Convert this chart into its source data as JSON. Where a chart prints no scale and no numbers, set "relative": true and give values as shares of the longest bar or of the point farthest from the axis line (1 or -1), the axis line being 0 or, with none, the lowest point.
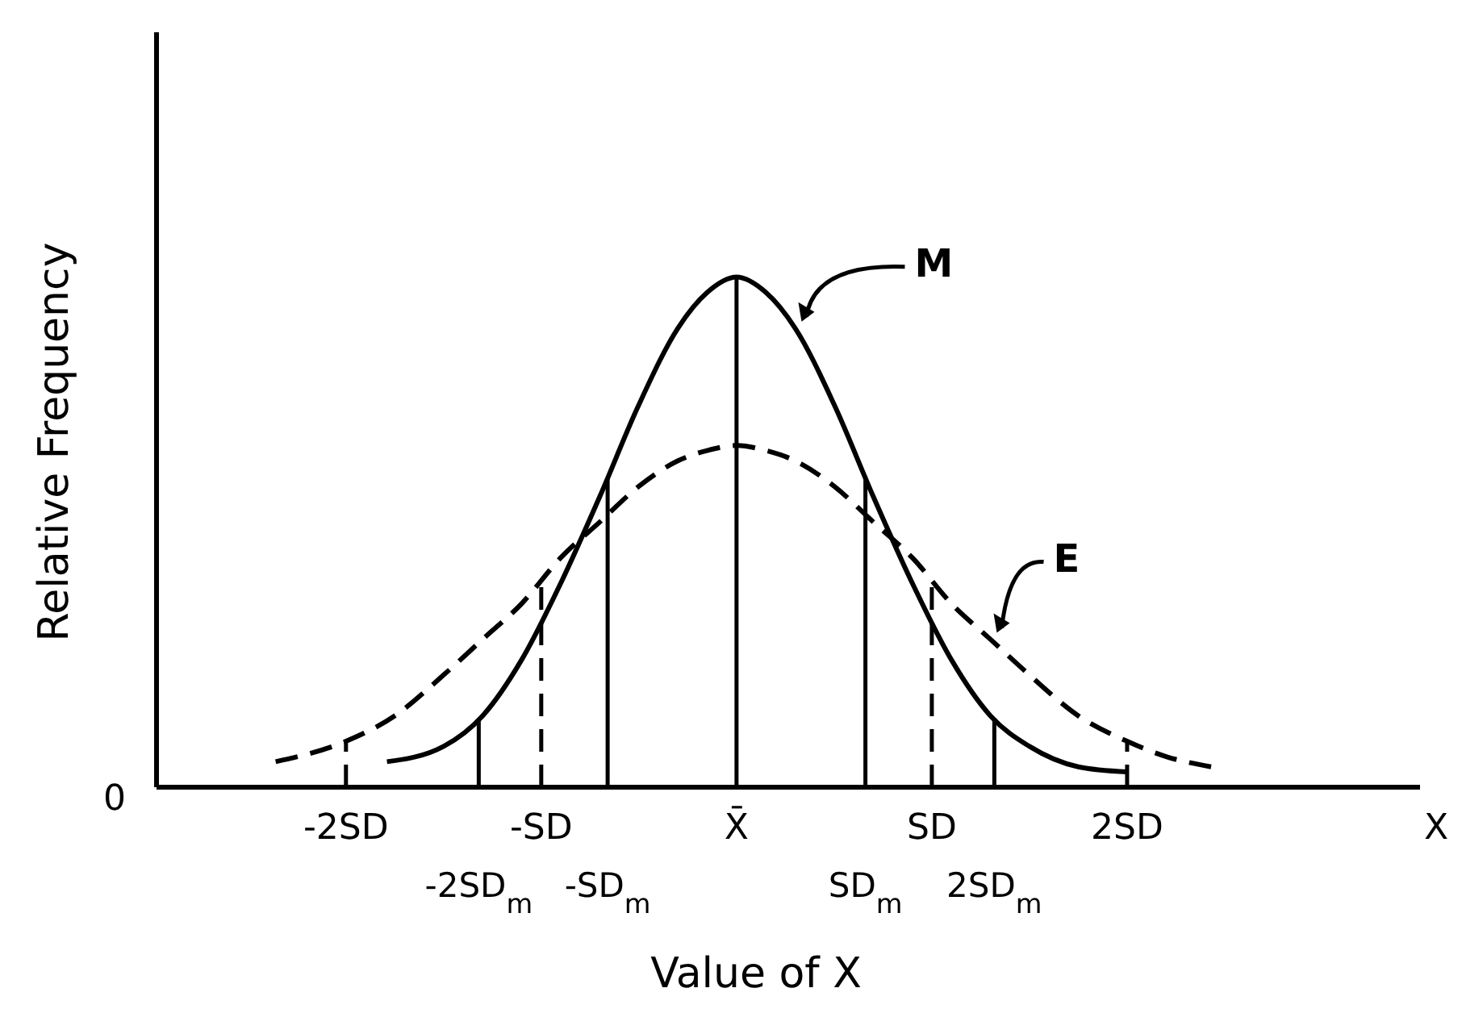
{
  "chart_data": {
    "type": "line",
    "relative": true,
    "xlabel": "Value of X",
    "ylabel": "Relative Frequency",
    "xlim": [
      -2.97,
      3.5
    ],
    "xticks": [
      {
        "value": -2,
        "label": "-2SD"
      },
      {
        "value": -1,
        "label": "-SD"
      },
      {
        "value": 0,
        "label": "X̄"
      },
      {
        "value": 1,
        "label": "SD"
      },
      {
        "value": 2,
        "label": "2SD"
      }
    ],
    "series": [
      {
        "name": "M",
        "color": "#000000",
        "line_style": "solid",
        "x": [
          -1.79,
          -1.5,
          -1.3,
          -1.1,
          -0.9,
          -0.7,
          -0.5,
          -0.3,
          -0.15,
          0,
          0.15,
          0.3,
          0.5,
          0.7,
          0.9,
          1.1,
          1.3,
          1.5,
          1.75,
          2.0
        ],
        "values": [
          0.05,
          0.08,
          0.14,
          0.25,
          0.4,
          0.57,
          0.75,
          0.9,
          0.97,
          1,
          0.97,
          0.9,
          0.75,
          0.57,
          0.4,
          0.25,
          0.14,
          0.08,
          0.04,
          0.03
        ]
      },
      {
        "name": "E",
        "color": "#000000",
        "line_style": "dashed",
        "x": [
          -2.36,
          -2.0,
          -1.75,
          -1.5,
          -1.3,
          -1.1,
          -0.9,
          -0.7,
          -0.5,
          -0.3,
          -0.15,
          0,
          0.15,
          0.3,
          0.5,
          0.7,
          0.9,
          1.1,
          1.3,
          1.5,
          1.75,
          2.0,
          2.2,
          2.43
        ],
        "values": [
          0.05,
          0.09,
          0.14,
          0.22,
          0.29,
          0.36,
          0.45,
          0.52,
          0.59,
          0.64,
          0.66,
          0.67,
          0.66,
          0.64,
          0.59,
          0.52,
          0.45,
          0.36,
          0.29,
          0.22,
          0.14,
          0.09,
          0.06,
          0.04
        ]
      }
    ],
    "ref_lines": [
      {
        "axis": "x",
        "value": -2,
        "line_style": "dashed"
      },
      {
        "axis": "x",
        "value": -1.32,
        "line_style": "solid",
        "label": "-2SD$_{m}$"
      },
      {
        "axis": "x",
        "value": -1,
        "line_style": "dashed"
      },
      {
        "axis": "x",
        "value": -0.66,
        "line_style": "solid",
        "label": "-SD$_{m}$"
      },
      {
        "axis": "x",
        "value": 0,
        "line_style": "solid"
      },
      {
        "axis": "x",
        "value": 0.66,
        "line_style": "solid",
        "label": "SD$_{m}$"
      },
      {
        "axis": "x",
        "value": 1,
        "line_style": "dashed"
      },
      {
        "axis": "x",
        "value": 1.32,
        "line_style": "solid",
        "label": "2SD$_{m}$"
      },
      {
        "axis": "x",
        "value": 2,
        "line_style": "dashed"
      }
    ],
    "annotations": [
      "0",
      "X"
    ]
  }
}
